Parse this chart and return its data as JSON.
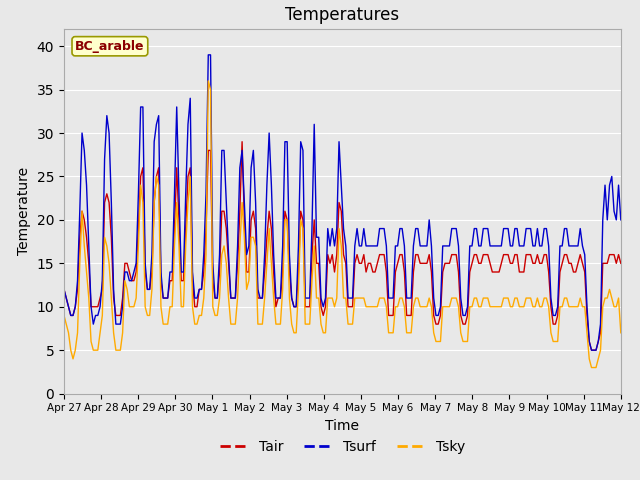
{
  "title": "Temperatures",
  "xlabel": "Time",
  "ylabel": "Temperature",
  "label_box": "BC_arable",
  "ylim": [
    0,
    42
  ],
  "yticks": [
    0,
    5,
    10,
    15,
    20,
    25,
    30,
    35,
    40
  ],
  "xtick_labels": [
    "Apr 27",
    "Apr 28",
    "Apr 29",
    "Apr 30",
    "May 1",
    "May 2",
    "May 3",
    "May 4",
    "May 5",
    "May 6",
    "May 7",
    "May 8",
    "May 9",
    "May 10",
    "May 11",
    "May 12"
  ],
  "bg_color": "#e8e8e8",
  "fig_bg_color": "#e8e8e8",
  "line_colors": {
    "Tair": "#cc0000",
    "Tsurf": "#0000cc",
    "Tsky": "#ffaa00"
  },
  "Tair": [
    12,
    11,
    10,
    9,
    9,
    10,
    12,
    18,
    21,
    20,
    18,
    15,
    10,
    10,
    10,
    10,
    11,
    12,
    22,
    23,
    22,
    18,
    11,
    9,
    9,
    9,
    11,
    15,
    15,
    14,
    13,
    13,
    14,
    19,
    25,
    26,
    14,
    12,
    12,
    14,
    22,
    25,
    26,
    13,
    11,
    11,
    11,
    13,
    13,
    19,
    26,
    20,
    13,
    13,
    19,
    25,
    26,
    13,
    10,
    10,
    12,
    12,
    14,
    19,
    28,
    28,
    13,
    11,
    11,
    14,
    21,
    21,
    19,
    15,
    11,
    11,
    11,
    15,
    21,
    29,
    20,
    14,
    14,
    20,
    21,
    19,
    11,
    11,
    11,
    14,
    18,
    21,
    19,
    14,
    10,
    11,
    11,
    14,
    21,
    20,
    14,
    11,
    10,
    10,
    14,
    21,
    20,
    10,
    10,
    10,
    16,
    20,
    15,
    15,
    10,
    9,
    10,
    16,
    15,
    16,
    14,
    16,
    22,
    21,
    16,
    15,
    10,
    10,
    10,
    15,
    16,
    15,
    15,
    16,
    14,
    15,
    15,
    14,
    14,
    15,
    16,
    16,
    16,
    14,
    9,
    9,
    9,
    14,
    15,
    16,
    16,
    14,
    9,
    9,
    9,
    14,
    16,
    16,
    15,
    15,
    15,
    15,
    16,
    14,
    9,
    8,
    8,
    9,
    14,
    15,
    15,
    15,
    16,
    16,
    16,
    14,
    9,
    8,
    8,
    9,
    14,
    15,
    16,
    16,
    15,
    15,
    16,
    16,
    16,
    15,
    14,
    14,
    14,
    14,
    15,
    16,
    16,
    16,
    15,
    15,
    16,
    16,
    14,
    14,
    14,
    16,
    16,
    16,
    15,
    15,
    16,
    15,
    15,
    16,
    16,
    14,
    10,
    8,
    8,
    9,
    14,
    15,
    16,
    16,
    15,
    15,
    14,
    14,
    15,
    16,
    15,
    14,
    9,
    6,
    5,
    5,
    5,
    6,
    7,
    15,
    15,
    15,
    16,
    16,
    16,
    15,
    16,
    15
  ],
  "Tsurf": [
    12,
    11,
    10,
    9,
    9,
    10,
    13,
    21,
    30,
    28,
    24,
    17,
    10,
    8,
    9,
    9,
    10,
    13,
    27,
    32,
    30,
    22,
    12,
    8,
    8,
    8,
    10,
    14,
    14,
    13,
    13,
    14,
    15,
    23,
    33,
    33,
    15,
    12,
    12,
    16,
    29,
    31,
    32,
    14,
    11,
    11,
    11,
    14,
    14,
    23,
    33,
    23,
    14,
    14,
    23,
    31,
    34,
    14,
    11,
    11,
    12,
    12,
    16,
    23,
    39,
    39,
    15,
    11,
    11,
    16,
    28,
    28,
    22,
    16,
    11,
    11,
    11,
    17,
    26,
    28,
    22,
    16,
    17,
    26,
    28,
    22,
    12,
    11,
    11,
    16,
    24,
    30,
    24,
    16,
    11,
    11,
    11,
    17,
    29,
    29,
    16,
    11,
    10,
    10,
    17,
    29,
    28,
    11,
    11,
    11,
    19,
    31,
    18,
    18,
    11,
    10,
    11,
    19,
    17,
    19,
    17,
    19,
    29,
    24,
    19,
    17,
    11,
    11,
    11,
    17,
    19,
    17,
    17,
    19,
    17,
    17,
    17,
    17,
    17,
    17,
    19,
    19,
    19,
    17,
    11,
    11,
    11,
    17,
    17,
    19,
    19,
    17,
    11,
    11,
    11,
    17,
    19,
    19,
    17,
    17,
    17,
    17,
    20,
    17,
    11,
    9,
    9,
    10,
    17,
    17,
    17,
    17,
    19,
    19,
    19,
    17,
    11,
    9,
    9,
    10,
    17,
    17,
    19,
    19,
    17,
    17,
    19,
    19,
    19,
    17,
    17,
    17,
    17,
    17,
    17,
    19,
    19,
    19,
    17,
    17,
    19,
    19,
    17,
    17,
    17,
    19,
    19,
    19,
    17,
    17,
    19,
    17,
    17,
    19,
    19,
    17,
    11,
    9,
    9,
    10,
    17,
    17,
    19,
    19,
    17,
    17,
    17,
    17,
    17,
    19,
    17,
    16,
    10,
    6,
    5,
    5,
    5,
    6,
    8,
    20,
    24,
    20,
    24,
    25,
    21,
    20,
    24,
    20
  ],
  "Tsky": [
    9,
    8,
    7,
    5,
    4,
    5,
    7,
    15,
    21,
    17,
    14,
    11,
    6,
    5,
    5,
    5,
    7,
    9,
    18,
    17,
    15,
    11,
    7,
    5,
    5,
    5,
    7,
    13,
    12,
    10,
    10,
    10,
    11,
    17,
    24,
    22,
    10,
    9,
    9,
    12,
    22,
    25,
    24,
    10,
    8,
    8,
    8,
    10,
    10,
    17,
    22,
    17,
    10,
    10,
    17,
    22,
    25,
    10,
    8,
    8,
    9,
    9,
    11,
    16,
    36,
    35,
    10,
    9,
    9,
    11,
    16,
    17,
    15,
    11,
    8,
    8,
    8,
    11,
    17,
    22,
    18,
    12,
    13,
    18,
    18,
    17,
    8,
    8,
    8,
    11,
    15,
    19,
    15,
    11,
    8,
    8,
    8,
    12,
    20,
    20,
    11,
    8,
    7,
    7,
    12,
    20,
    19,
    8,
    8,
    8,
    13,
    17,
    11,
    11,
    8,
    7,
    7,
    11,
    11,
    11,
    10,
    11,
    19,
    17,
    11,
    11,
    8,
    8,
    8,
    11,
    11,
    11,
    11,
    11,
    10,
    10,
    10,
    10,
    10,
    10,
    11,
    11,
    11,
    10,
    7,
    7,
    7,
    10,
    10,
    11,
    11,
    10,
    7,
    7,
    7,
    10,
    11,
    11,
    10,
    10,
    10,
    10,
    11,
    10,
    7,
    6,
    6,
    6,
    10,
    10,
    10,
    10,
    11,
    11,
    11,
    10,
    7,
    6,
    6,
    6,
    10,
    10,
    11,
    11,
    10,
    10,
    11,
    11,
    11,
    10,
    10,
    10,
    10,
    10,
    10,
    11,
    11,
    11,
    10,
    10,
    11,
    11,
    10,
    10,
    10,
    11,
    11,
    11,
    10,
    10,
    11,
    10,
    10,
    11,
    11,
    10,
    7,
    6,
    6,
    6,
    10,
    10,
    11,
    11,
    10,
    10,
    10,
    10,
    10,
    11,
    10,
    10,
    7,
    4,
    3,
    3,
    3,
    4,
    5,
    10,
    11,
    11,
    12,
    11,
    10,
    10,
    11,
    7
  ]
}
